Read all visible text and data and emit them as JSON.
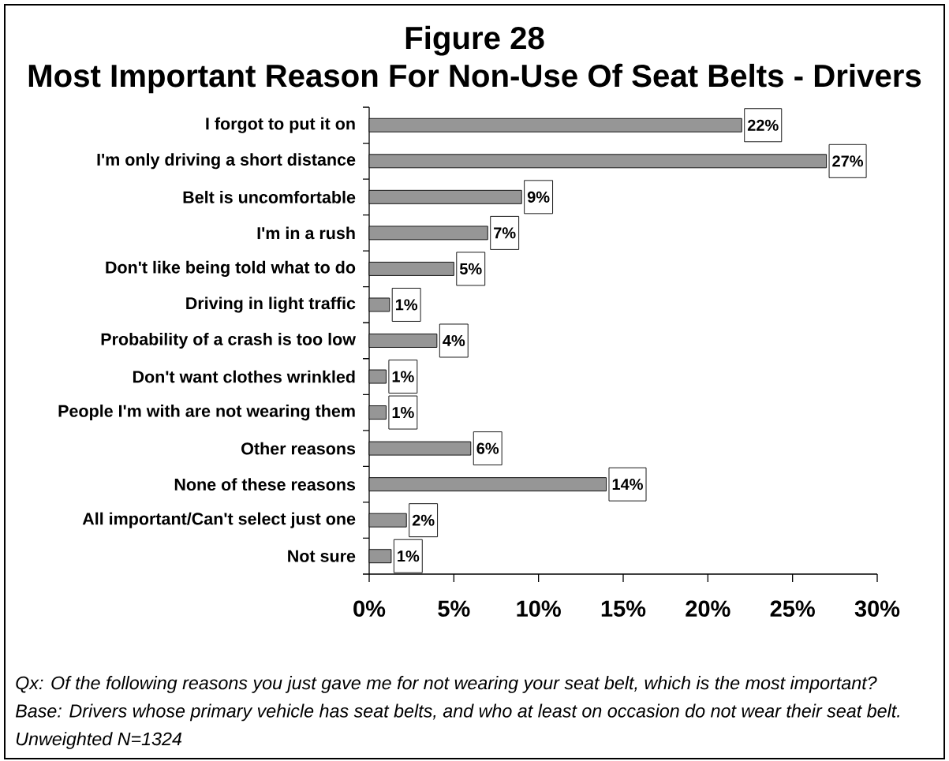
{
  "chart_data": {
    "type": "bar",
    "orientation": "horizontal",
    "title": "Figure 28",
    "subtitle": "Most Important Reason For Non-Use Of Seat Belts - Drivers",
    "categories": [
      "I forgot to put it on",
      "I'm only driving a short distance",
      "Belt is uncomfortable",
      "I'm in a rush",
      "Don't like being told what to do",
      "Driving in light traffic",
      "Probability of a crash is too low",
      "Don't want clothes wrinkled",
      "People I'm with are not wearing them",
      "Other reasons",
      "None of these reasons",
      "All important/Can't select just one",
      "Not sure"
    ],
    "values": [
      22,
      27,
      9,
      7,
      5,
      1.2,
      4,
      1,
      1,
      6,
      14,
      2.2,
      1.3
    ],
    "value_labels": [
      "22%",
      "27%",
      "9%",
      "7%",
      "5%",
      "1%",
      "4%",
      "1%",
      "1%",
      "6%",
      "14%",
      "2%",
      "1%"
    ],
    "color": "#969696",
    "xlim": [
      0,
      30
    ],
    "xticks": [
      {
        "value": 0,
        "label": "0%"
      },
      {
        "value": 5,
        "label": "5%"
      },
      {
        "value": 10,
        "label": "10%"
      },
      {
        "value": 15,
        "label": "15%"
      },
      {
        "value": 20,
        "label": "20%"
      },
      {
        "value": 25,
        "label": "25%"
      },
      {
        "value": 30,
        "label": "30%"
      }
    ],
    "annotations": [
      "Qx: Of the following reasons you just gave me for not wearing your seat belt, which is the most important?",
      "Base: Drivers whose primary vehicle has seat belts, and who at least on occasion do not wear their seat belt.",
      "Unweighted N=1324"
    ]
  }
}
